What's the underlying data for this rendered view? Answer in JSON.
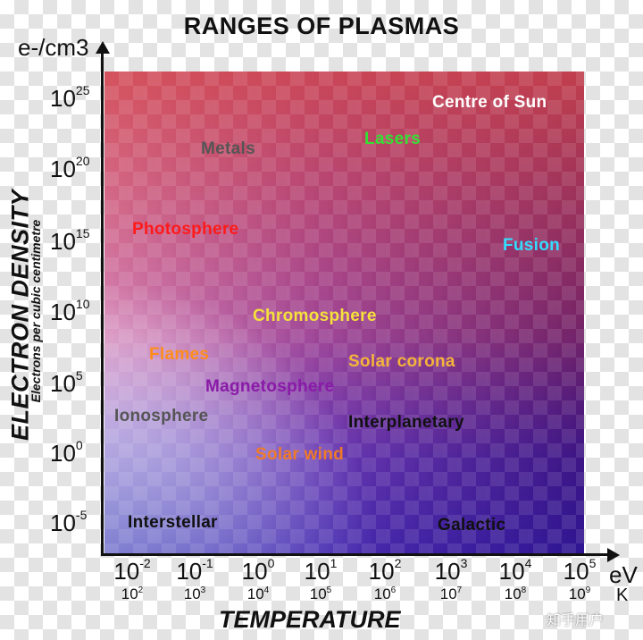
{
  "title": "RANGES OF PLASMAS",
  "y_unit": "e-/cm3",
  "y_axis": {
    "label": "ELECTRON DENSITY",
    "sublabel": "Electrons per cubic centimetre",
    "ticks": [
      {
        "base": "10",
        "exp": "25"
      },
      {
        "base": "10",
        "exp": "20"
      },
      {
        "base": "10",
        "exp": "15"
      },
      {
        "base": "10",
        "exp": "10"
      },
      {
        "base": "10",
        "exp": "5"
      },
      {
        "base": "10",
        "exp": "0"
      },
      {
        "base": "10",
        "exp": "-5"
      }
    ]
  },
  "x_axis": {
    "label": "TEMPERATURE",
    "unit_ev": "eV",
    "unit_k": "K",
    "ev_ticks": [
      {
        "base": "10",
        "exp": "-2"
      },
      {
        "base": "10",
        "exp": "-1"
      },
      {
        "base": "10",
        "exp": "0"
      },
      {
        "base": "10",
        "exp": "1"
      },
      {
        "base": "10",
        "exp": "2"
      },
      {
        "base": "10",
        "exp": "3"
      },
      {
        "base": "10",
        "exp": "4"
      },
      {
        "base": "10",
        "exp": "5"
      }
    ],
    "k_ticks": [
      {
        "base": "10",
        "exp": "2"
      },
      {
        "base": "10",
        "exp": "3"
      },
      {
        "base": "10",
        "exp": "4"
      },
      {
        "base": "10",
        "exp": "5"
      },
      {
        "base": "10",
        "exp": "6"
      },
      {
        "base": "10",
        "exp": "7"
      },
      {
        "base": "10",
        "exp": "8"
      },
      {
        "base": "10",
        "exp": "9"
      }
    ]
  },
  "regions": [
    {
      "label": "Centre of Sun",
      "color": "#ffffff"
    },
    {
      "label": "Lasers",
      "color": "#33e033"
    },
    {
      "label": "Metals",
      "color": "#555555"
    },
    {
      "label": "Photosphere",
      "color": "#ff1a1a"
    },
    {
      "label": "Fusion",
      "color": "#33ddff"
    },
    {
      "label": "Chromosphere",
      "color": "#f5e23a"
    },
    {
      "label": "Flames",
      "color": "#ff8c1a"
    },
    {
      "label": "Solar corona",
      "color": "#f5b43a"
    },
    {
      "label": "Magnetosphere",
      "color": "#8a1aa8"
    },
    {
      "label": "Ionosphere",
      "color": "#555555"
    },
    {
      "label": "Interplanetary",
      "color": "#111111"
    },
    {
      "label": "Solar wind",
      "color": "#f07a2a"
    },
    {
      "label": "Interstellar",
      "color": "#111111"
    },
    {
      "label": "Galactic",
      "color": "#111111"
    }
  ],
  "watermark": "知乎用户"
}
